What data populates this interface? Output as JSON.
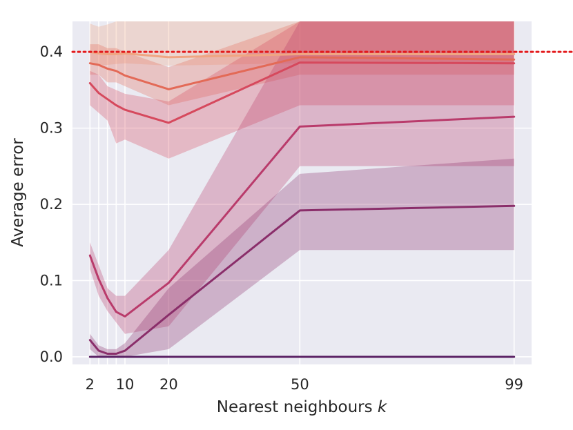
{
  "chart_data": {
    "type": "line",
    "xlabel": "Nearest neighbours",
    "xlabel_var": "k",
    "ylabel": "Average error",
    "x_ticks": [
      2,
      10,
      20,
      50,
      99
    ],
    "y_ticks": [
      "0.0",
      "0.1",
      "0.2",
      "0.3",
      "0.4"
    ],
    "xlim": [
      -2,
      103
    ],
    "ylim": [
      -0.01,
      0.44
    ],
    "x_gridlines": [
      2,
      4,
      6,
      8,
      10,
      20,
      50,
      99
    ],
    "grid": true,
    "background": "#eaeaf2",
    "reference_line": {
      "y": 0.4,
      "color": "#e31a1c",
      "style": "dotted"
    },
    "series": [
      {
        "color": "#f0a582",
        "x": [
          2,
          4,
          6,
          8,
          10,
          20,
          50,
          99
        ],
        "y": [
          0.4,
          0.398,
          0.397,
          0.397,
          0.398,
          0.393,
          0.397,
          0.397
        ],
        "lower": [
          0.385,
          0.383,
          0.383,
          0.384,
          0.385,
          0.382,
          0.385,
          0.385
        ],
        "upper": [
          0.437,
          0.433,
          0.436,
          0.44,
          0.44,
          0.44,
          0.44,
          0.44
        ]
      },
      {
        "color": "#e36a57",
        "x": [
          2,
          4,
          6,
          8,
          10,
          20,
          50,
          99
        ],
        "y": [
          0.385,
          0.383,
          0.378,
          0.375,
          0.369,
          0.351,
          0.393,
          0.39
        ],
        "lower": [
          0.37,
          0.37,
          0.36,
          0.36,
          0.355,
          0.33,
          0.37,
          0.37
        ],
        "upper": [
          0.41,
          0.41,
          0.405,
          0.405,
          0.4,
          0.38,
          0.44,
          0.44
        ]
      },
      {
        "color": "#d6495d",
        "x": [
          2,
          4,
          6,
          8,
          10,
          20,
          50,
          99
        ],
        "y": [
          0.359,
          0.346,
          0.338,
          0.33,
          0.324,
          0.307,
          0.386,
          0.385
        ],
        "lower": [
          0.33,
          0.32,
          0.31,
          0.28,
          0.285,
          0.26,
          0.33,
          0.33
        ],
        "upper": [
          0.375,
          0.37,
          0.355,
          0.35,
          0.345,
          0.335,
          0.44,
          0.44
        ]
      },
      {
        "color": "#b93b6b",
        "x": [
          2,
          4,
          6,
          8,
          10,
          20,
          50,
          99
        ],
        "y": [
          0.133,
          0.102,
          0.077,
          0.059,
          0.053,
          0.097,
          0.302,
          0.315
        ],
        "lower": [
          0.115,
          0.08,
          0.06,
          0.045,
          0.03,
          0.04,
          0.25,
          0.25
        ],
        "upper": [
          0.15,
          0.12,
          0.09,
          0.08,
          0.08,
          0.14,
          0.44,
          0.44
        ]
      },
      {
        "color": "#8a2e6a",
        "x": [
          2,
          4,
          6,
          8,
          10,
          20,
          50,
          99
        ],
        "y": [
          0.022,
          0.008,
          0.004,
          0.004,
          0.008,
          0.055,
          0.192,
          0.198
        ],
        "lower": [
          0.01,
          0.0,
          0.0,
          0.0,
          0.0,
          0.01,
          0.14,
          0.14
        ],
        "upper": [
          0.03,
          0.015,
          0.01,
          0.01,
          0.018,
          0.09,
          0.24,
          0.26
        ]
      },
      {
        "color": "#5c2466",
        "x": [
          2,
          4,
          6,
          8,
          10,
          20,
          50,
          99
        ],
        "y": [
          0.0,
          0.0,
          0.0,
          0.0,
          0.0,
          0.0,
          0.0,
          0.0
        ]
      }
    ]
  }
}
